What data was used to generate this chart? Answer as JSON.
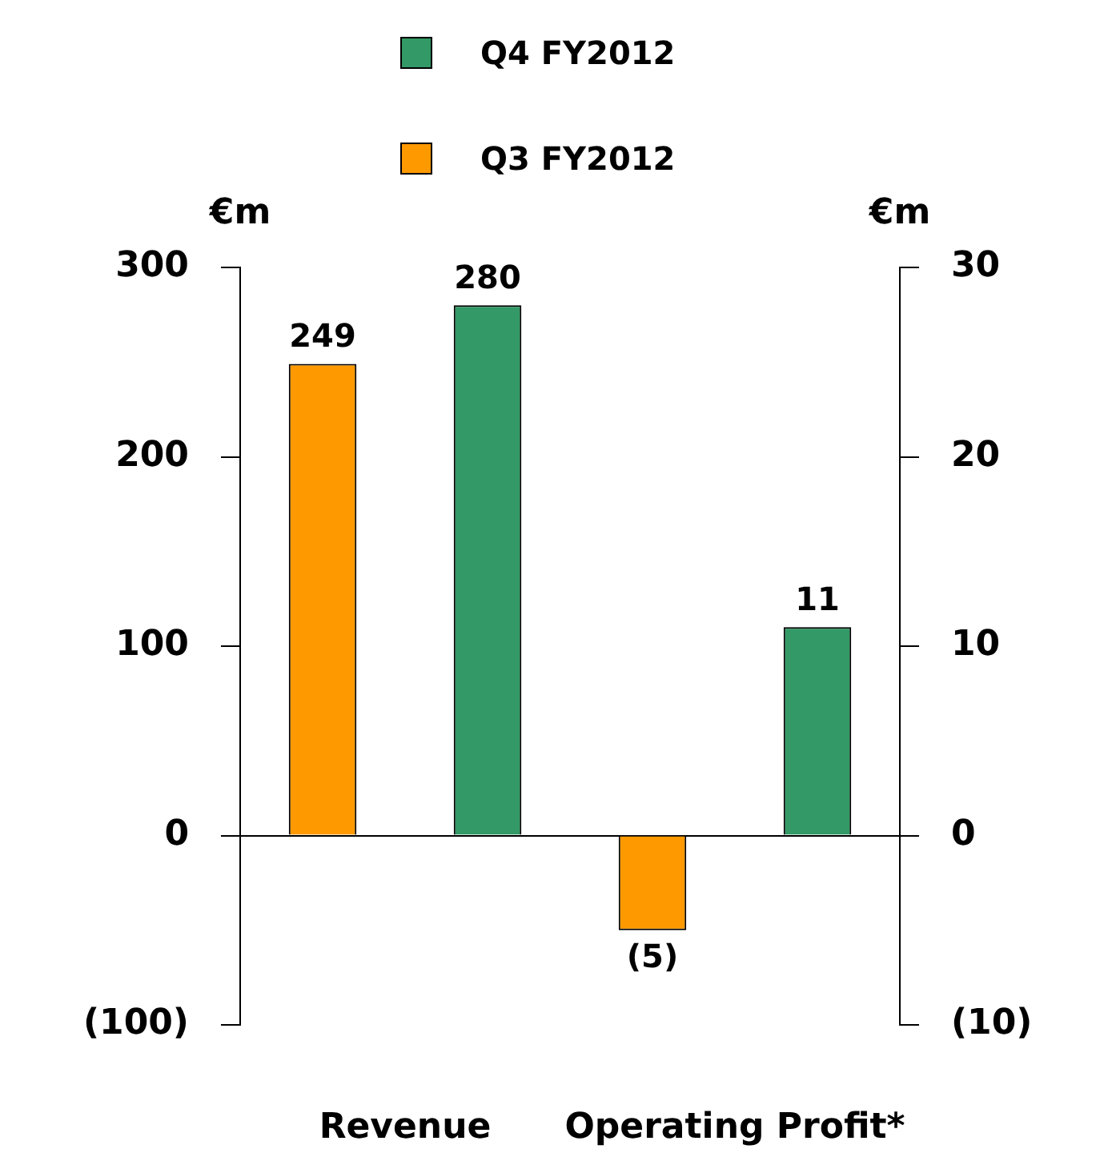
{
  "chart_data": {
    "type": "bar",
    "categories": [
      "Revenue",
      "Operating Profit*"
    ],
    "ylabel": "€m",
    "y2label": "€m",
    "ylim": [
      -100,
      300
    ],
    "yticks": [
      {
        "value": -100,
        "label": "(100)"
      },
      0,
      100,
      200,
      300
    ],
    "y2lim": [
      -10,
      30
    ],
    "y2ticks": [
      {
        "value": -10,
        "label": "(10)"
      },
      0,
      10,
      20,
      30
    ],
    "legend": "top",
    "series": [
      {
        "name": "Q3 FY2012",
        "color": "#ff9900",
        "values": [
          249,
          null
        ],
        "axis": "y",
        "value_labels": [
          "249",
          null
        ]
      },
      {
        "name": "Q4 FY2012",
        "color": "#339966",
        "values": [
          280,
          null
        ],
        "axis": "y",
        "value_labels": [
          "280",
          null
        ]
      },
      {
        "color": "#ff9900",
        "values": [
          null,
          -5
        ],
        "axis": "y2",
        "value_labels": [
          null,
          "(5)"
        ]
      },
      {
        "color": "#339966",
        "values": [
          null,
          11
        ],
        "axis": "y2",
        "value_labels": [
          null,
          "11"
        ]
      }
    ]
  }
}
